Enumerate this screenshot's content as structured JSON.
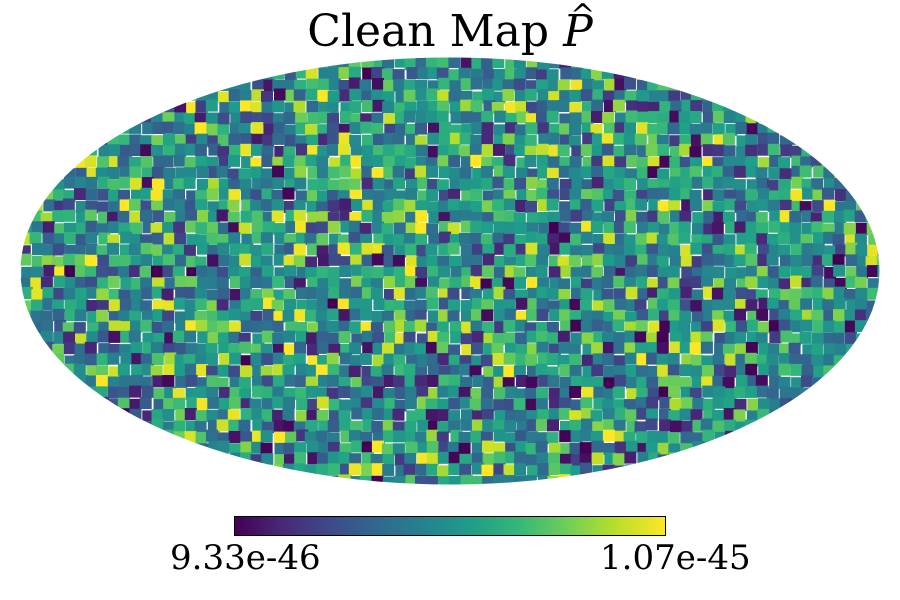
{
  "figure": {
    "title_text": "Clean Map ",
    "title_symbol": "P"
  },
  "chart_data": {
    "type": "heatmap",
    "projection": "mollweide",
    "title": "Clean Map P̂",
    "colormap": "viridis",
    "colorbar": {
      "orientation": "horizontal",
      "placement": "bottom",
      "min_label": "9.33e-46",
      "max_label": "1.07e-45",
      "min": 9.33e-46,
      "max": 1.07e-45
    },
    "pixel_resolution": "HEALPix, coarse (low nside)",
    "distribution_note": "predominantly mid-range (teal/green) values with scattered dark-purple and yellow extremes"
  }
}
